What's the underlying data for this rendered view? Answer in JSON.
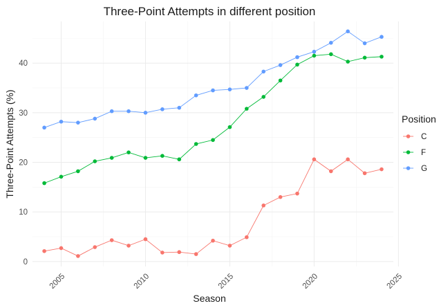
{
  "chart_data": {
    "type": "line",
    "title": "Three-Point Attempts in different position",
    "xlabel": "Season",
    "ylabel": "Three-Point Attempts (%)",
    "xlim": [
      2003.3,
      2024.7
    ],
    "ylim": [
      -1.0,
      48.4
    ],
    "x_ticks": [
      2005,
      2010,
      2015,
      2020,
      2025
    ],
    "y_ticks": [
      0,
      10,
      20,
      30,
      40
    ],
    "x": [
      2004,
      2005,
      2006,
      2007,
      2008,
      2009,
      2010,
      2011,
      2012,
      2013,
      2014,
      2015,
      2016,
      2017,
      2018,
      2019,
      2020,
      2021,
      2022,
      2023,
      2024
    ],
    "legend_title": "Position",
    "legend_position": "right",
    "grid": true,
    "series": [
      {
        "name": "C",
        "color": "#F8766D",
        "values": [
          2.1,
          2.7,
          1.1,
          2.9,
          4.3,
          3.2,
          4.5,
          1.8,
          1.9,
          1.5,
          4.2,
          3.2,
          4.9,
          11.3,
          13.0,
          13.7,
          20.6,
          18.2,
          20.6,
          17.8,
          18.6
        ]
      },
      {
        "name": "F",
        "color": "#00BA38",
        "values": [
          15.8,
          17.1,
          18.2,
          20.2,
          20.9,
          22.0,
          20.9,
          21.3,
          20.6,
          23.7,
          24.5,
          27.1,
          30.8,
          33.2,
          36.5,
          39.7,
          41.5,
          41.8,
          40.3,
          41.1,
          41.3
        ]
      },
      {
        "name": "G",
        "color": "#619CFF",
        "values": [
          27.0,
          28.2,
          28.0,
          28.8,
          30.3,
          30.3,
          30.0,
          30.7,
          31.0,
          33.5,
          34.5,
          34.7,
          35.0,
          38.3,
          39.6,
          41.2,
          42.3,
          44.1,
          46.4,
          44.0,
          45.3
        ]
      }
    ]
  }
}
